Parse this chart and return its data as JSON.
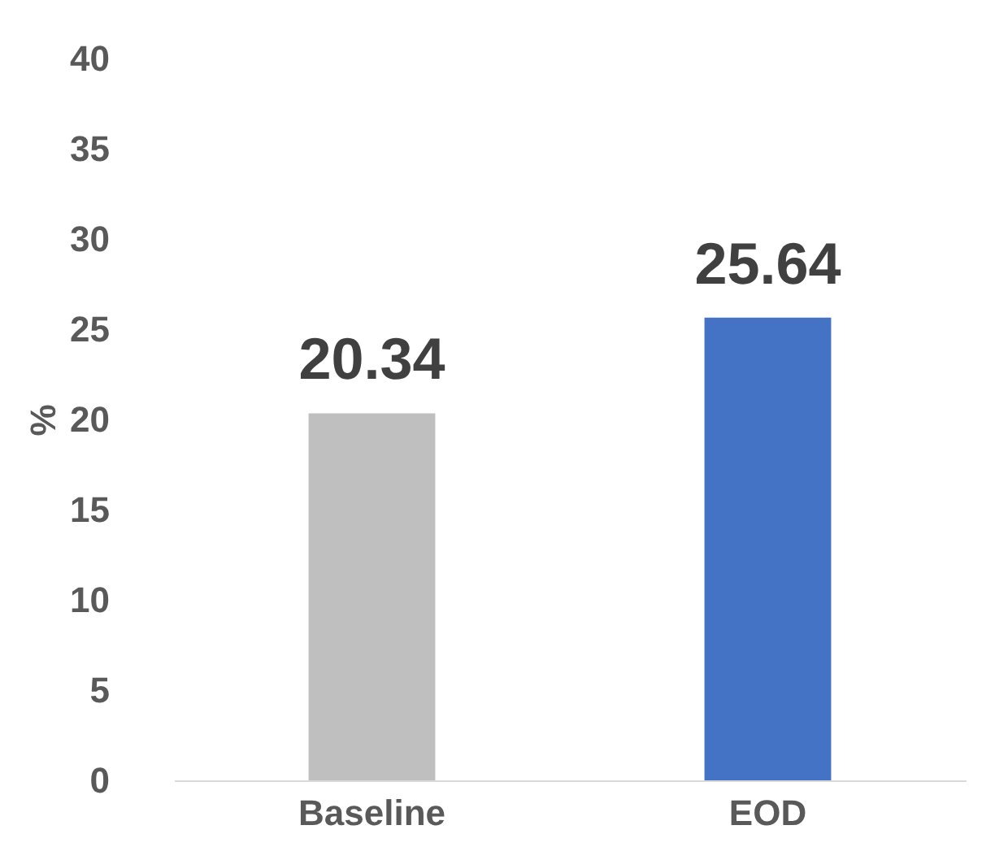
{
  "chart_data": {
    "type": "bar",
    "categories": [
      "Baseline",
      "EOD"
    ],
    "values": [
      20.34,
      25.64
    ],
    "colors": [
      "#bfbfbf",
      "#4472c4"
    ],
    "ylabel": "%",
    "ylim": [
      0,
      40
    ],
    "yticks": [
      0,
      5,
      10,
      15,
      20,
      25,
      30,
      35,
      40
    ],
    "grid": false,
    "data_labels": true
  }
}
